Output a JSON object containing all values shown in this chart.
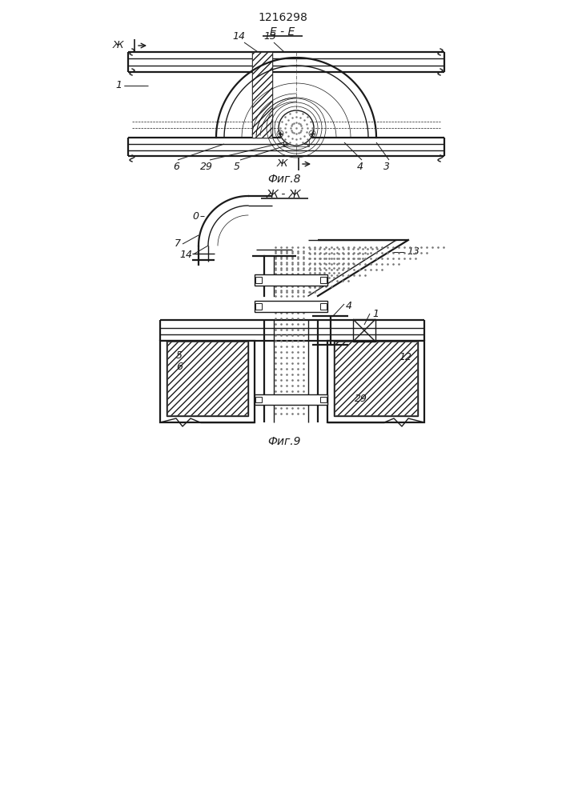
{
  "title": "1216298",
  "fig8_label": "Е - Е",
  "fig9_label": "Ж - Ж",
  "fig8_caption": "Фиг.8",
  "fig9_caption": "Фиг.9",
  "bg_color": "#ffffff",
  "line_color": "#1a1a1a",
  "lw": 1.0,
  "lw_thick": 1.6,
  "lw_thin": 0.5
}
